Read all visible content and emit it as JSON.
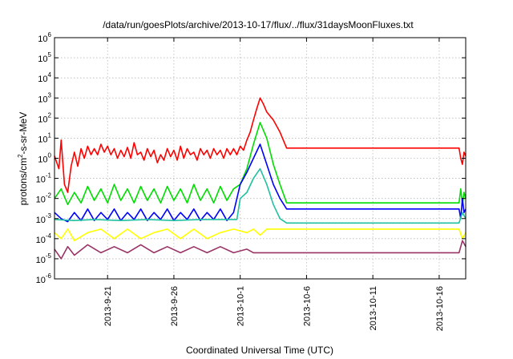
{
  "chart_data": {
    "type": "line",
    "title": "/data/run/goesPlots/archive/2013-10-17/flux/../flux/31daysMoonFluxes.txt",
    "xlabel": "Coordinated Universal Time (UTC)",
    "ylabel": "protons/cm2-s-sr-MeV",
    "ylabel_parts": {
      "pre": "protons/cm",
      "sup": "2",
      "post": "-s-sr-MeV"
    },
    "yscale": "log",
    "ylim": [
      1e-06,
      1000000.0
    ],
    "xlim": [
      "2013-09-17",
      "2013-10-18"
    ],
    "grid": true,
    "y_ticks": [
      {
        "value": 1e-06,
        "base": "10",
        "exp": "-6"
      },
      {
        "value": 1e-05,
        "base": "10",
        "exp": "-5"
      },
      {
        "value": 0.0001,
        "base": "10",
        "exp": "-4"
      },
      {
        "value": 0.001,
        "base": "10",
        "exp": "-3"
      },
      {
        "value": 0.01,
        "base": "10",
        "exp": "-2"
      },
      {
        "value": 0.1,
        "base": "10",
        "exp": "-1"
      },
      {
        "value": 1.0,
        "base": "10",
        "exp": "0"
      },
      {
        "value": 10.0,
        "base": "10",
        "exp": "1"
      },
      {
        "value": 100.0,
        "base": "10",
        "exp": "2"
      },
      {
        "value": 1000.0,
        "base": "10",
        "exp": "3"
      },
      {
        "value": 10000.0,
        "base": "10",
        "exp": "4"
      },
      {
        "value": 100000.0,
        "base": "10",
        "exp": "5"
      },
      {
        "value": 1000000.0,
        "base": "10",
        "exp": "6"
      }
    ],
    "x_ticks": [
      {
        "date": "2013-09-21",
        "label": "2013-9-21"
      },
      {
        "date": "2013-09-26",
        "label": "2013-9-26"
      },
      {
        "date": "2013-10-01",
        "label": "2013-10-1"
      },
      {
        "date": "2013-10-06",
        "label": "2013-10-6"
      },
      {
        "date": "2013-10-11",
        "label": "2013-10-11"
      },
      {
        "date": "2013-10-16",
        "label": "2013-10-16"
      }
    ],
    "series": [
      {
        "color": "#ff0000",
        "points": [
          [
            "2013-09-17T00:00",
            1.3
          ],
          [
            "2013-09-17T08:00",
            0.3
          ],
          [
            "2013-09-17T12:00",
            8.0
          ],
          [
            "2013-09-17T18:00",
            0.05
          ],
          [
            "2013-09-18T00:00",
            0.02
          ],
          [
            "2013-09-18T06:00",
            0.4
          ],
          [
            "2013-09-18T12:00",
            2.0
          ],
          [
            "2013-09-18T18:00",
            0.4
          ],
          [
            "2013-09-19T00:00",
            3.0
          ],
          [
            "2013-09-19T06:00",
            1.0
          ],
          [
            "2013-09-19T12:00",
            4.0
          ],
          [
            "2013-09-19T18:00",
            1.5
          ],
          [
            "2013-09-20T00:00",
            3.0
          ],
          [
            "2013-09-20T06:00",
            1.5
          ],
          [
            "2013-09-20T12:00",
            5.0
          ],
          [
            "2013-09-20T18:00",
            2.0
          ],
          [
            "2013-09-21T00:00",
            4.0
          ],
          [
            "2013-09-21T06:00",
            1.5
          ],
          [
            "2013-09-21T12:00",
            3.0
          ],
          [
            "2013-09-21T18:00",
            1.0
          ],
          [
            "2013-09-22T00:00",
            2.5
          ],
          [
            "2013-09-22T06:00",
            1.2
          ],
          [
            "2013-09-22T12:00",
            3.5
          ],
          [
            "2013-09-22T18:00",
            1.0
          ],
          [
            "2013-09-23T00:00",
            6.0
          ],
          [
            "2013-09-23T06:00",
            1.5
          ],
          [
            "2013-09-23T12:00",
            2.0
          ],
          [
            "2013-09-23T18:00",
            0.8
          ],
          [
            "2013-09-24T00:00",
            3.0
          ],
          [
            "2013-09-24T06:00",
            1.2
          ],
          [
            "2013-09-24T12:00",
            2.5
          ],
          [
            "2013-09-24T18:00",
            0.6
          ],
          [
            "2013-09-25T00:00",
            1.5
          ],
          [
            "2013-09-25T06:00",
            0.8
          ],
          [
            "2013-09-25T12:00",
            3.0
          ],
          [
            "2013-09-25T18:00",
            1.2
          ],
          [
            "2013-09-26T00:00",
            2.5
          ],
          [
            "2013-09-26T06:00",
            0.8
          ],
          [
            "2013-09-26T12:00",
            4.0
          ],
          [
            "2013-09-26T18:00",
            1.0
          ],
          [
            "2013-09-27T00:00",
            3.0
          ],
          [
            "2013-09-27T06:00",
            1.5
          ],
          [
            "2013-09-27T12:00",
            2.0
          ],
          [
            "2013-09-27T18:00",
            0.8
          ],
          [
            "2013-09-28T00:00",
            3.0
          ],
          [
            "2013-09-28T06:00",
            1.5
          ],
          [
            "2013-09-28T12:00",
            2.5
          ],
          [
            "2013-09-28T18:00",
            1.0
          ],
          [
            "2013-09-29T00:00",
            3.0
          ],
          [
            "2013-09-29T06:00",
            1.5
          ],
          [
            "2013-09-29T12:00",
            2.5
          ],
          [
            "2013-09-29T18:00",
            1.0
          ],
          [
            "2013-09-30T00:00",
            3.0
          ],
          [
            "2013-09-30T06:00",
            1.5
          ],
          [
            "2013-09-30T12:00",
            3.0
          ],
          [
            "2013-09-30T18:00",
            1.5
          ],
          [
            "2013-10-01T00:00",
            4.0
          ],
          [
            "2013-10-01T06:00",
            2.5
          ],
          [
            "2013-10-01T12:00",
            8.0
          ],
          [
            "2013-10-01T18:00",
            20.0
          ],
          [
            "2013-10-02T00:00",
            80.0
          ],
          [
            "2013-10-02T06:00",
            300.0
          ],
          [
            "2013-10-02T12:00",
            1000.0
          ],
          [
            "2013-10-02T18:00",
            500.0
          ],
          [
            "2013-10-03T00:00",
            200.0
          ],
          [
            "2013-10-03T12:00",
            80.0
          ],
          [
            "2013-10-04T00:00",
            20.0
          ],
          [
            "2013-10-04T12:00",
            3.2
          ],
          [
            "2013-10-17T12:00",
            3.2
          ],
          [
            "2013-10-17T15:00",
            1.0
          ],
          [
            "2013-10-17T18:00",
            0.5
          ],
          [
            "2013-10-17T21:00",
            2.0
          ],
          [
            "2013-10-18T00:00",
            1.3
          ]
        ]
      },
      {
        "color": "#00dd00",
        "points": [
          [
            "2013-09-17T00:00",
            0.01
          ],
          [
            "2013-09-17T12:00",
            0.03
          ],
          [
            "2013-09-18T00:00",
            0.005
          ],
          [
            "2013-09-18T12:00",
            0.02
          ],
          [
            "2013-09-19T00:00",
            0.006
          ],
          [
            "2013-09-19T12:00",
            0.04
          ],
          [
            "2013-09-20T00:00",
            0.008
          ],
          [
            "2013-09-20T12:00",
            0.03
          ],
          [
            "2013-09-21T00:00",
            0.006
          ],
          [
            "2013-09-21T12:00",
            0.05
          ],
          [
            "2013-09-22T00:00",
            0.008
          ],
          [
            "2013-09-22T12:00",
            0.03
          ],
          [
            "2013-09-23T00:00",
            0.006
          ],
          [
            "2013-09-23T12:00",
            0.04
          ],
          [
            "2013-09-24T00:00",
            0.008
          ],
          [
            "2013-09-24T12:00",
            0.03
          ],
          [
            "2013-09-25T00:00",
            0.006
          ],
          [
            "2013-09-25T12:00",
            0.04
          ],
          [
            "2013-09-26T00:00",
            0.008
          ],
          [
            "2013-09-26T12:00",
            0.03
          ],
          [
            "2013-09-27T00:00",
            0.006
          ],
          [
            "2013-09-27T12:00",
            0.05
          ],
          [
            "2013-09-28T00:00",
            0.008
          ],
          [
            "2013-09-28T12:00",
            0.03
          ],
          [
            "2013-09-29T00:00",
            0.006
          ],
          [
            "2013-09-29T12:00",
            0.04
          ],
          [
            "2013-09-30T00:00",
            0.008
          ],
          [
            "2013-09-30T12:00",
            0.03
          ],
          [
            "2013-10-01T00:00",
            0.05
          ],
          [
            "2013-10-01T12:00",
            0.3
          ],
          [
            "2013-10-02T00:00",
            5.0
          ],
          [
            "2013-10-02T12:00",
            60.0
          ],
          [
            "2013-10-03T00:00",
            10.0
          ],
          [
            "2013-10-03T12:00",
            0.5
          ],
          [
            "2013-10-04T00:00",
            0.05
          ],
          [
            "2013-10-04T12:00",
            0.006
          ],
          [
            "2013-10-17T12:00",
            0.006
          ],
          [
            "2013-10-17T15:00",
            0.03
          ],
          [
            "2013-10-17T18:00",
            0.005
          ],
          [
            "2013-10-17T21:00",
            0.02
          ],
          [
            "2013-10-18T00:00",
            0.01
          ]
        ]
      },
      {
        "color": "#0000ff",
        "points": [
          [
            "2013-09-17T00:00",
            0.002
          ],
          [
            "2013-09-17T12:00",
            0.001
          ],
          [
            "2013-09-18T00:00",
            0.0007
          ],
          [
            "2013-09-18T12:00",
            0.002
          ],
          [
            "2013-09-19T00:00",
            0.0008
          ],
          [
            "2013-09-19T12:00",
            0.003
          ],
          [
            "2013-09-20T00:00",
            0.0008
          ],
          [
            "2013-09-20T12:00",
            0.002
          ],
          [
            "2013-09-21T00:00",
            0.0009
          ],
          [
            "2013-09-21T12:00",
            0.003
          ],
          [
            "2013-09-22T00:00",
            0.0008
          ],
          [
            "2013-09-22T12:00",
            0.002
          ],
          [
            "2013-09-23T00:00",
            0.0009
          ],
          [
            "2013-09-23T12:00",
            0.003
          ],
          [
            "2013-09-24T00:00",
            0.0008
          ],
          [
            "2013-09-24T12:00",
            0.002
          ],
          [
            "2013-09-25T00:00",
            0.0009
          ],
          [
            "2013-09-25T12:00",
            0.003
          ],
          [
            "2013-09-26T00:00",
            0.0008
          ],
          [
            "2013-09-26T12:00",
            0.002
          ],
          [
            "2013-09-27T00:00",
            0.0009
          ],
          [
            "2013-09-27T12:00",
            0.003
          ],
          [
            "2013-09-28T00:00",
            0.0008
          ],
          [
            "2013-09-28T12:00",
            0.002
          ],
          [
            "2013-09-29T00:00",
            0.0009
          ],
          [
            "2013-09-29T12:00",
            0.003
          ],
          [
            "2013-09-30T00:00",
            0.0008
          ],
          [
            "2013-09-30T12:00",
            0.002
          ],
          [
            "2013-10-01T00:00",
            0.05
          ],
          [
            "2013-10-01T12:00",
            0.2
          ],
          [
            "2013-10-02T00:00",
            1.0
          ],
          [
            "2013-10-02T12:00",
            5.0
          ],
          [
            "2013-10-03T00:00",
            0.5
          ],
          [
            "2013-10-03T12:00",
            0.05
          ],
          [
            "2013-10-04T00:00",
            0.01
          ],
          [
            "2013-10-04T12:00",
            0.003
          ],
          [
            "2013-10-17T12:00",
            0.003
          ],
          [
            "2013-10-17T15:00",
            0.001
          ],
          [
            "2013-10-17T18:00",
            0.01
          ],
          [
            "2013-10-17T21:00",
            0.002
          ],
          [
            "2013-10-18T00:00",
            0.003
          ]
        ]
      },
      {
        "color": "#20c0a0",
        "points": [
          [
            "2013-09-17T00:00",
            0.0009
          ],
          [
            "2013-09-18T12:00",
            0.0008
          ],
          [
            "2013-09-20T00:00",
            0.0009
          ],
          [
            "2013-09-22T00:00",
            0.0008
          ],
          [
            "2013-09-24T00:00",
            0.0009
          ],
          [
            "2013-09-26T00:00",
            0.0008
          ],
          [
            "2013-09-28T00:00",
            0.0009
          ],
          [
            "2013-09-30T18:00",
            0.0009
          ],
          [
            "2013-10-01T00:00",
            0.01
          ],
          [
            "2013-10-01T12:00",
            0.02
          ],
          [
            "2013-10-02T00:00",
            0.1
          ],
          [
            "2013-10-02T12:00",
            0.3
          ],
          [
            "2013-10-03T00:00",
            0.05
          ],
          [
            "2013-10-03T12:00",
            0.005
          ],
          [
            "2013-10-04T00:00",
            0.001
          ],
          [
            "2013-10-04T12:00",
            0.0006
          ],
          [
            "2013-10-17T12:00",
            0.0006
          ],
          [
            "2013-10-17T18:00",
            0.002
          ],
          [
            "2013-10-18T00:00",
            0.001
          ]
        ]
      },
      {
        "color": "#ffff00",
        "points": [
          [
            "2013-09-17T00:00",
            0.0002
          ],
          [
            "2013-09-17T12:00",
            0.0001
          ],
          [
            "2013-09-18T00:00",
            0.0003
          ],
          [
            "2013-09-18T12:00",
            8e-05
          ],
          [
            "2013-09-19T12:00",
            0.0002
          ],
          [
            "2013-09-20T12:00",
            0.0003
          ],
          [
            "2013-09-21T12:00",
            0.0001
          ],
          [
            "2013-09-22T12:00",
            0.0003
          ],
          [
            "2013-09-23T12:00",
            0.0001
          ],
          [
            "2013-09-24T12:00",
            0.0002
          ],
          [
            "2013-09-25T12:00",
            0.0003
          ],
          [
            "2013-09-26T12:00",
            0.0001
          ],
          [
            "2013-09-27T12:00",
            0.0003
          ],
          [
            "2013-09-28T12:00",
            0.0001
          ],
          [
            "2013-09-29T12:00",
            0.0002
          ],
          [
            "2013-09-30T12:00",
            0.0003
          ],
          [
            "2013-10-01T12:00",
            0.0002
          ],
          [
            "2013-10-02T00:00",
            0.0003
          ],
          [
            "2013-10-02T12:00",
            0.00015
          ],
          [
            "2013-10-03T00:00",
            0.0003
          ],
          [
            "2013-10-17T12:00",
            0.0003
          ],
          [
            "2013-10-17T18:00",
            0.0001
          ],
          [
            "2013-10-18T00:00",
            0.0002
          ]
        ]
      },
      {
        "color": "#993366",
        "points": [
          [
            "2013-09-17T00:00",
            3e-05
          ],
          [
            "2013-09-17T12:00",
            1e-05
          ],
          [
            "2013-09-18T00:00",
            4e-05
          ],
          [
            "2013-09-18T12:00",
            1.5e-05
          ],
          [
            "2013-09-19T12:00",
            5e-05
          ],
          [
            "2013-09-20T12:00",
            2e-05
          ],
          [
            "2013-09-21T12:00",
            4e-05
          ],
          [
            "2013-09-22T12:00",
            2e-05
          ],
          [
            "2013-09-23T12:00",
            5e-05
          ],
          [
            "2013-09-24T12:00",
            2e-05
          ],
          [
            "2013-09-25T12:00",
            4e-05
          ],
          [
            "2013-09-26T12:00",
            2e-05
          ],
          [
            "2013-09-27T12:00",
            4e-05
          ],
          [
            "2013-09-28T12:00",
            2e-05
          ],
          [
            "2013-09-29T12:00",
            4e-05
          ],
          [
            "2013-09-30T12:00",
            2e-05
          ],
          [
            "2013-10-01T12:00",
            3e-05
          ],
          [
            "2013-10-02T00:00",
            2e-05
          ],
          [
            "2013-10-03T00:00",
            2e-05
          ],
          [
            "2013-10-17T12:00",
            2e-05
          ],
          [
            "2013-10-17T18:00",
            8e-05
          ],
          [
            "2013-10-18T00:00",
            4e-05
          ]
        ]
      }
    ]
  }
}
